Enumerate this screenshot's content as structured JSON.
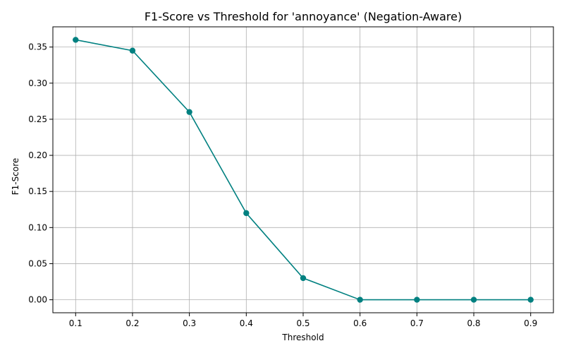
{
  "chart_data": {
    "type": "line",
    "title": "F1-Score vs Threshold for 'annoyance' (Negation-Aware)",
    "xlabel": "Threshold",
    "ylabel": "F1-Score",
    "x": [
      0.1,
      0.2,
      0.3,
      0.4,
      0.5,
      0.6,
      0.7,
      0.8,
      0.9
    ],
    "series": [
      {
        "values": [
          0.36,
          0.345,
          0.26,
          0.12,
          0.03,
          0.0,
          0.0,
          0.0,
          0.0
        ],
        "color": "#008080",
        "marker": "circle"
      }
    ],
    "xlim": [
      0.06,
      0.94
    ],
    "ylim": [
      -0.018,
      0.378
    ],
    "xticks": [
      "0.1",
      "0.2",
      "0.3",
      "0.4",
      "0.5",
      "0.6",
      "0.7",
      "0.8",
      "0.9"
    ],
    "yticks": [
      "0.00",
      "0.05",
      "0.10",
      "0.15",
      "0.20",
      "0.25",
      "0.30",
      "0.35"
    ],
    "grid": true
  }
}
